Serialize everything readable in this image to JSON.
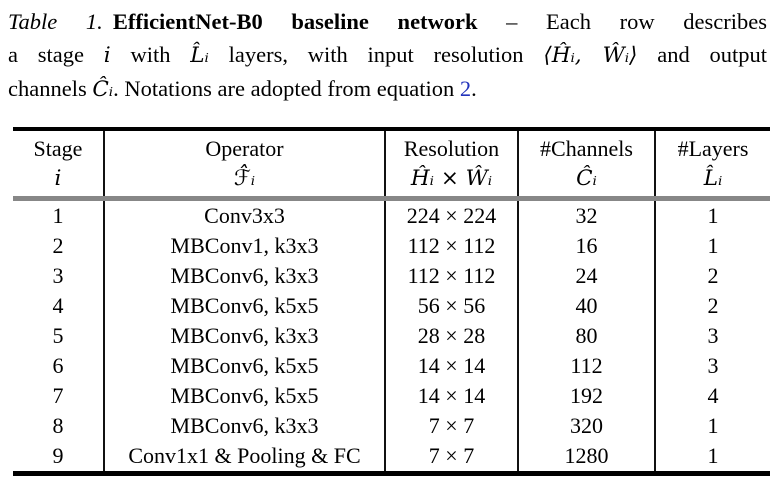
{
  "caption": {
    "lines": [
      {
        "segments": [
          {
            "text": "Table 1."
          },
          {
            "text": "EfficientNet-B0 baseline network"
          },
          {
            "text": " – Each row describes"
          }
        ]
      },
      {
        "segments": [
          {
            "text": "a stage "
          },
          {
            "text": "i"
          },
          {
            "text": " with "
          },
          {
            "text": "L̂ᵢ"
          },
          {
            "text": " layers, with input resolution "
          },
          {
            "text": "⟨Ĥᵢ, Ŵᵢ⟩"
          },
          {
            "text": " and output"
          }
        ]
      },
      {
        "segments": [
          {
            "text": "channels "
          },
          {
            "text": "Ĉᵢ"
          },
          {
            "text": ". Notations are adopted from equation "
          },
          {
            "text": "2"
          },
          {
            "text": "."
          }
        ]
      }
    ]
  },
  "table": {
    "headers": [
      {
        "label": "Stage",
        "symbol": "i"
      },
      {
        "label": "Operator",
        "symbol": "ℱ̂ᵢ"
      },
      {
        "label": "Resolution",
        "symbol": "Ĥᵢ × Ŵᵢ"
      },
      {
        "label": "#Channels",
        "symbol": "Ĉᵢ"
      },
      {
        "label": "#Layers",
        "symbol": "L̂ᵢ"
      }
    ],
    "rows": [
      {
        "stage": "1",
        "operator": "Conv3x3",
        "resolution": "224 × 224",
        "channels": "32",
        "layers": "1"
      },
      {
        "stage": "2",
        "operator": "MBConv1, k3x3",
        "resolution": "112 × 112",
        "channels": "16",
        "layers": "1"
      },
      {
        "stage": "3",
        "operator": "MBConv6, k3x3",
        "resolution": "112 × 112",
        "channels": "24",
        "layers": "2"
      },
      {
        "stage": "4",
        "operator": "MBConv6, k5x5",
        "resolution": "56 × 56",
        "channels": "40",
        "layers": "2"
      },
      {
        "stage": "5",
        "operator": "MBConv6, k3x3",
        "resolution": "28 × 28",
        "channels": "80",
        "layers": "3"
      },
      {
        "stage": "6",
        "operator": "MBConv6, k5x5",
        "resolution": "14 × 14",
        "channels": "112",
        "layers": "3"
      },
      {
        "stage": "7",
        "operator": "MBConv6, k5x5",
        "resolution": "14 × 14",
        "channels": "192",
        "layers": "4"
      },
      {
        "stage": "8",
        "operator": "MBConv6, k3x3",
        "resolution": "7 × 7",
        "channels": "320",
        "layers": "1"
      },
      {
        "stage": "9",
        "operator": "Conv1x1 & Pooling & FC",
        "resolution": "7 × 7",
        "channels": "1280",
        "layers": "1"
      }
    ]
  },
  "colors": {
    "link_blue": "#2233bb",
    "header_rule_gray": "#878787",
    "text": "#000000",
    "background": "#ffffff"
  }
}
